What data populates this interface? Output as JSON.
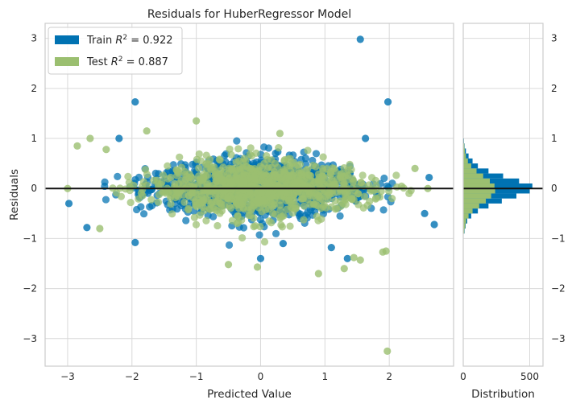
{
  "chart_data": {
    "type": "scatter",
    "title": "Residuals for HuberRegressor Model",
    "xlabel": "Predicted Value",
    "ylabel": "Residuals",
    "xlim": [
      -3.35,
      3.0
    ],
    "ylim": [
      -3.55,
      3.3
    ],
    "xticks": [
      -3,
      -2,
      -1,
      0,
      1,
      2
    ],
    "yticks": [
      -3,
      -2,
      -1,
      0,
      1,
      2,
      3
    ],
    "grid": true,
    "legend_position": "top-left",
    "zero_line": 0,
    "series": [
      {
        "name": "Train R² = 0.922",
        "legend_prefix": "Train ",
        "legend_value": " = 0.922",
        "color": "#0072b2",
        "cluster": {
          "x_min": -2.5,
          "x_max": 2.5,
          "count": 1100
        },
        "outliers": [
          [
            1.55,
            2.98
          ],
          [
            1.98,
            1.73
          ],
          [
            -1.95,
            1.73
          ],
          [
            -1.95,
            -1.08
          ],
          [
            1.63,
            1.0
          ],
          [
            -2.2,
            1.0
          ],
          [
            0.0,
            -1.4
          ],
          [
            1.35,
            -1.4
          ],
          [
            2.62,
            0.22
          ],
          [
            -2.98,
            -0.3
          ],
          [
            2.7,
            -0.72
          ],
          [
            -2.7,
            -0.78
          ],
          [
            2.55,
            -0.5
          ],
          [
            0.35,
            -1.1
          ],
          [
            1.1,
            -1.18
          ]
        ]
      },
      {
        "name": "Test R² = 0.887",
        "legend_prefix": "Test ",
        "legend_value": " = 0.887",
        "color": "#9bbf70",
        "cluster": {
          "x_min": -2.4,
          "x_max": 2.4,
          "count": 900
        },
        "outliers": [
          [
            1.97,
            -3.25
          ],
          [
            0.9,
            -1.7
          ],
          [
            -0.5,
            -1.52
          ],
          [
            -0.05,
            -1.57
          ],
          [
            1.3,
            -1.6
          ],
          [
            1.45,
            -1.38
          ],
          [
            1.55,
            -1.43
          ],
          [
            1.95,
            -1.25
          ],
          [
            1.9,
            -1.27
          ],
          [
            -3.0,
            0.0
          ],
          [
            -2.85,
            0.85
          ],
          [
            -2.65,
            1.0
          ],
          [
            -2.4,
            0.78
          ],
          [
            -1.77,
            1.15
          ],
          [
            -1.0,
            1.35
          ],
          [
            2.6,
            0.0
          ],
          [
            0.3,
            1.1
          ],
          [
            2.4,
            0.4
          ],
          [
            -2.5,
            -0.8
          ]
        ]
      }
    ],
    "histogram": {
      "xlabel": "Distribution",
      "xticks": [
        0,
        500
      ],
      "xlim": [
        0,
        600
      ],
      "bin_width": 0.1,
      "bins": [
        {
          "center": -0.85,
          "train": 10,
          "test": 8
        },
        {
          "center": -0.75,
          "train": 18,
          "test": 15
        },
        {
          "center": -0.65,
          "train": 30,
          "test": 22
        },
        {
          "center": -0.55,
          "train": 60,
          "test": 40
        },
        {
          "center": -0.45,
          "train": 110,
          "test": 70
        },
        {
          "center": -0.35,
          "train": 190,
          "test": 120
        },
        {
          "center": -0.25,
          "train": 290,
          "test": 170
        },
        {
          "center": -0.15,
          "train": 400,
          "test": 210
        },
        {
          "center": -0.05,
          "train": 500,
          "test": 240
        },
        {
          "center": 0.05,
          "train": 520,
          "test": 235
        },
        {
          "center": 0.15,
          "train": 420,
          "test": 200
        },
        {
          "center": 0.25,
          "train": 300,
          "test": 150
        },
        {
          "center": 0.35,
          "train": 190,
          "test": 100
        },
        {
          "center": 0.45,
          "train": 110,
          "test": 60
        },
        {
          "center": 0.55,
          "train": 70,
          "test": 35
        },
        {
          "center": 0.65,
          "train": 40,
          "test": 20
        },
        {
          "center": 0.75,
          "train": 20,
          "test": 12
        },
        {
          "center": 0.85,
          "train": 10,
          "test": 8
        },
        {
          "center": 0.95,
          "train": 6,
          "test": 4
        }
      ]
    }
  }
}
